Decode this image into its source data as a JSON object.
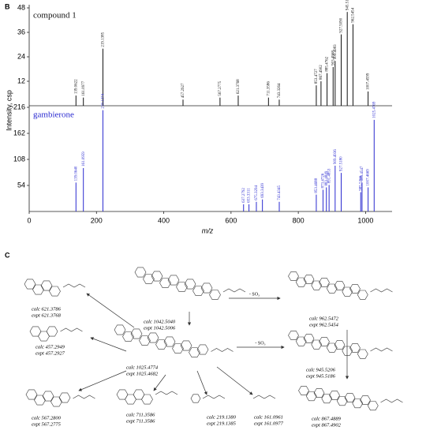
{
  "panel_label": "B",
  "chart_data": [
    {
      "type": "bar",
      "ylabel": "Intensity, csp",
      "x": [
        139.0622,
        161.0977,
        219.1385,
        457.2927,
        567.2775,
        621.3768,
        711.3586,
        743.3264,
        853.4727,
        867.4902,
        885.4762,
        903.4968,
        909.4983,
        927.509,
        945.5186,
        962.5454,
        1007.4599
      ],
      "x_labels": [
        "139.0622",
        "161.0977",
        "219.1385",
        "457.2927",
        "567.2775",
        "621.3768",
        "711.3586",
        "743.3264",
        "853.4727",
        "867.4902",
        "885.4762",
        "903.4968",
        "909.4983",
        "927.5090",
        "945.5186",
        "962.5454",
        "1007.4599"
      ],
      "series": [
        {
          "name": "compound 1",
          "color": "#111111",
          "values": [
            5,
            4,
            28,
            3,
            4,
            5,
            4,
            3,
            10,
            12,
            16,
            19,
            22,
            35,
            46,
            40,
            7
          ]
        }
      ],
      "xlim": [
        0,
        1060
      ],
      "ylim": [
        0,
        48
      ],
      "yticks": [
        12,
        24,
        36,
        48
      ]
    },
    {
      "type": "bar",
      "xlabel": "m/z",
      "x": [
        139.064,
        161.0959,
        219.1374,
        637.2792,
        653.3311,
        675.3294,
        693.3439,
        743.4345,
        853.4688,
        873.4726,
        883.4849,
        891.4853,
        909.4936,
        927.518,
        985.5266,
        989.4547,
        1007.4669,
        1025.4769
      ],
      "x_labels": [
        "139.0640",
        "161.0959",
        "219.1374",
        "637.2792",
        "653.3311",
        "675.3294",
        "693.3439",
        "743.4345",
        "853.4688",
        "873.4726",
        "883.4849",
        "891.4853",
        "909.4936",
        "927.5180",
        "985.5266",
        "989.4547",
        "1007.4669",
        "1025.4769"
      ],
      "series": [
        {
          "name": "gambierone",
          "color": "#2a2ad0",
          "values": [
            60,
            90,
            210,
            15,
            15,
            20,
            25,
            20,
            35,
            45,
            50,
            55,
            95,
            80,
            40,
            60,
            50,
            190
          ]
        }
      ],
      "xlim": [
        0,
        1060
      ],
      "ylim": [
        0,
        216
      ],
      "yticks": [
        54,
        108,
        162,
        216
      ],
      "xticks": [
        0,
        200,
        400,
        600,
        800,
        1000
      ]
    }
  ],
  "scheme": {
    "label": "C",
    "fragments": [
      {
        "calc": "calc 621.3786",
        "expt": "expt 621.3768"
      },
      {
        "calc": "calc 1042.5040",
        "expt": "expt 1042.5006"
      },
      {
        "calc": "calc 962.5472",
        "expt": "expt 962.5454"
      },
      {
        "calc": "calc 457.2949",
        "expt": "expt 457.2927"
      },
      {
        "calc": "calc 1025.4774",
        "expt": "expt 1025.4682"
      },
      {
        "calc": "calc 945.5206",
        "expt": "expt 945.5186"
      },
      {
        "calc": "calc 567.2800",
        "expt": "expt 567.2775"
      },
      {
        "calc": "calc 711.3586",
        "expt": "expt 711.3586"
      },
      {
        "calc": "calc 219.1380",
        "expt": "expt 219.1385"
      },
      {
        "calc": "calc 161.0961",
        "expt": "expt 161.0977"
      },
      {
        "calc": "calc 867.4889",
        "expt": "expt 867.4902"
      }
    ],
    "arrow_labels": [
      "- SO₃",
      "- SO₃"
    ]
  }
}
